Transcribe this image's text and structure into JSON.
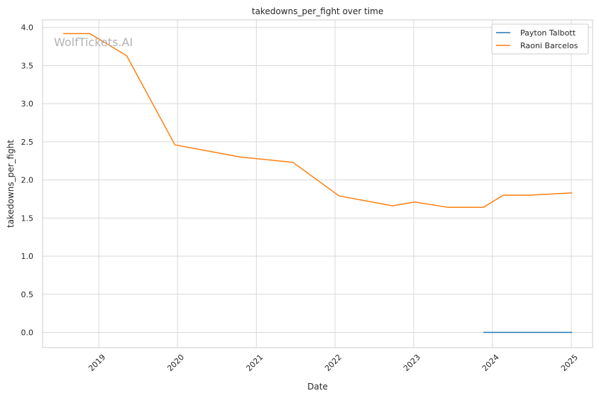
{
  "chart_data": {
    "type": "line",
    "title": "takedowns_per_fight over time",
    "xlabel": "Date",
    "ylabel": "takedowns_per_fight",
    "watermark": "WolfTickets.AI",
    "x_axis_type": "date",
    "xlim": [
      "2018-04-15",
      "2025-04-10"
    ],
    "ylim": [
      -0.2,
      4.1
    ],
    "x_ticks": [
      {
        "date": "2019-01-01",
        "label": "2019"
      },
      {
        "date": "2020-01-01",
        "label": "2020"
      },
      {
        "date": "2021-01-01",
        "label": "2021"
      },
      {
        "date": "2022-01-01",
        "label": "2022"
      },
      {
        "date": "2023-01-01",
        "label": "2023"
      },
      {
        "date": "2024-01-01",
        "label": "2024"
      },
      {
        "date": "2025-01-01",
        "label": "2025"
      }
    ],
    "y_ticks": [
      {
        "value": 0.0,
        "label": "0.0"
      },
      {
        "value": 0.5,
        "label": "0.5"
      },
      {
        "value": 1.0,
        "label": "1.0"
      },
      {
        "value": 1.5,
        "label": "1.5"
      },
      {
        "value": 2.0,
        "label": "2.0"
      },
      {
        "value": 2.5,
        "label": "2.5"
      },
      {
        "value": 3.0,
        "label": "3.0"
      },
      {
        "value": 3.5,
        "label": "3.5"
      },
      {
        "value": 4.0,
        "label": "4.0"
      }
    ],
    "grid": true,
    "legend_position": "top-right",
    "series": [
      {
        "name": "Payton Talbott",
        "color": "#1f77b4",
        "points": [
          {
            "x": "2023-11-20",
            "y": 0.0
          },
          {
            "x": "2025-01-05",
            "y": 0.0
          }
        ]
      },
      {
        "name": "Raoni Barcelos",
        "color": "#ff7f0e",
        "points": [
          {
            "x": "2018-07-20",
            "y": 3.92
          },
          {
            "x": "2018-11-20",
            "y": 3.92
          },
          {
            "x": "2019-05-10",
            "y": 3.63
          },
          {
            "x": "2019-12-20",
            "y": 2.46
          },
          {
            "x": "2020-10-20",
            "y": 2.3
          },
          {
            "x": "2021-06-20",
            "y": 2.23
          },
          {
            "x": "2022-01-20",
            "y": 1.79
          },
          {
            "x": "2022-09-25",
            "y": 1.66
          },
          {
            "x": "2023-01-05",
            "y": 1.71
          },
          {
            "x": "2023-06-10",
            "y": 1.64
          },
          {
            "x": "2023-11-20",
            "y": 1.64
          },
          {
            "x": "2024-02-20",
            "y": 1.8
          },
          {
            "x": "2024-06-20",
            "y": 1.8
          },
          {
            "x": "2025-01-05",
            "y": 1.83
          }
        ]
      }
    ]
  }
}
